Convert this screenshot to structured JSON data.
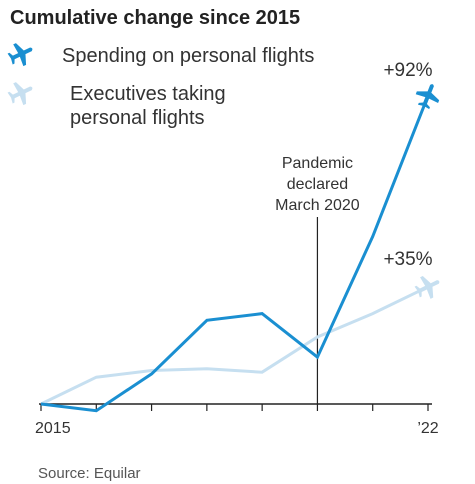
{
  "chart_data": {
    "type": "line",
    "title": "Cumulative change since 2015",
    "x": [
      2015,
      2016,
      2017,
      2018,
      2019,
      2020,
      2021,
      2022
    ],
    "x_tick_labels": [
      "2015",
      "",
      "",
      "",
      "",
      "",
      "",
      "’22"
    ],
    "series": [
      {
        "name": "Spending on personal flights",
        "values": [
          0,
          -2,
          9,
          25,
          27,
          14,
          50,
          92
        ],
        "end_label": "+92%",
        "color": "#1a8fd1",
        "icon": "airplane-icon"
      },
      {
        "name": "Executives taking personal flights",
        "values": [
          0,
          8,
          10,
          10.5,
          9.5,
          20,
          27,
          35
        ],
        "end_label": "+35%",
        "color": "#c6dff0",
        "icon": "airplane-icon"
      }
    ],
    "annotation": {
      "text_lines": [
        "Pandemic",
        "declared",
        "March 2020"
      ],
      "x": 2020.0
    },
    "xlim": [
      2015,
      2022
    ],
    "ylim": [
      -5,
      95
    ],
    "grid": false,
    "legend_placement": "top-left",
    "source": "Source: Equilar"
  }
}
